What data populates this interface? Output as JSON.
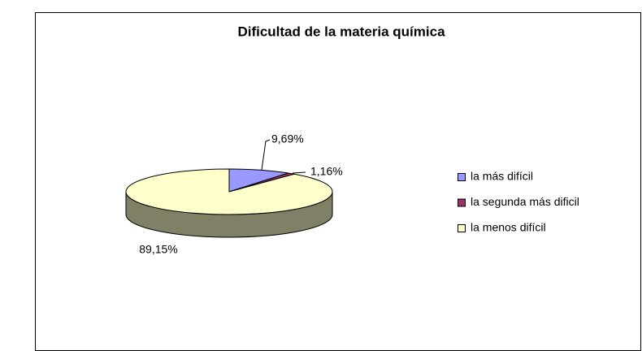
{
  "chart_data": {
    "type": "pie",
    "title": "Dificultad de la materia química",
    "categories": [
      "la más difícil",
      "la segunda más dificil",
      "la menos difícil"
    ],
    "values": [
      9.69,
      1.16,
      89.15
    ],
    "value_labels": [
      "9,69%",
      "1,16%",
      "89,15%"
    ],
    "colors": [
      "#9999ff",
      "#993366",
      "#ffffcc"
    ],
    "legend": "right",
    "three_d": true
  }
}
